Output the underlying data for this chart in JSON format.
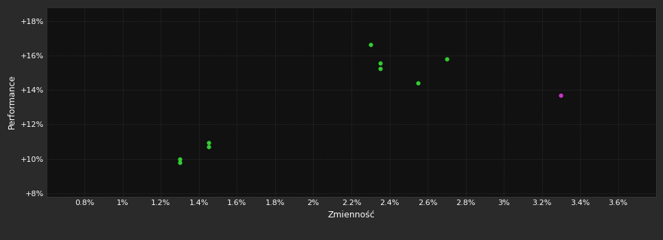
{
  "background_color": "#2a2a2a",
  "plot_bg_color": "#111111",
  "grid_color": "#3a3a3a",
  "text_color": "#ffffff",
  "xlabel": "Zmienność",
  "ylabel": "Performance",
  "xlim": [
    0.006,
    0.038
  ],
  "ylim": [
    0.078,
    0.188
  ],
  "xticks": [
    0.008,
    0.01,
    0.012,
    0.014,
    0.016,
    0.018,
    0.02,
    0.022,
    0.024,
    0.026,
    0.028,
    0.03,
    0.032,
    0.034,
    0.036
  ],
  "xtick_labels": [
    "0.8%",
    "1%",
    "1.2%",
    "1.4%",
    "1.6%",
    "1.8%",
    "2%",
    "2.2%",
    "2.4%",
    "2.6%",
    "2.8%",
    "3%",
    "3.2%",
    "3.4%",
    "3.6%"
  ],
  "yticks": [
    0.08,
    0.1,
    0.12,
    0.14,
    0.16,
    0.18
  ],
  "ytick_labels": [
    "+8%",
    "+10%",
    "+12%",
    "+14%",
    "+16%",
    "+18%"
  ],
  "green_points": [
    [
      0.013,
      0.1
    ],
    [
      0.013,
      0.098
    ],
    [
      0.0145,
      0.1095
    ],
    [
      0.0145,
      0.107
    ],
    [
      0.023,
      0.1665
    ],
    [
      0.0235,
      0.1555
    ],
    [
      0.0235,
      0.1525
    ],
    [
      0.0255,
      0.144
    ],
    [
      0.027,
      0.158
    ]
  ],
  "magenta_points": [
    [
      0.033,
      0.137
    ]
  ],
  "green_color": "#33cc33",
  "magenta_color": "#cc33cc",
  "marker_size": 20,
  "font_size": 8,
  "label_font_size": 9
}
